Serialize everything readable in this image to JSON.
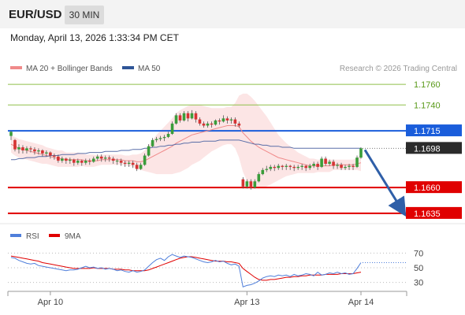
{
  "header": {
    "pair": "EUR/USD",
    "timeframe": "30 MIN"
  },
  "datetime": "Monday, April 13, 2026 1:33:34 PM CET",
  "legend": {
    "bb": {
      "label": "MA 20 + Bollinger Bands",
      "color": "#f08a8a"
    },
    "ma50": {
      "label": "MA 50",
      "color": "#2f5597"
    }
  },
  "credit": "Research © 2026 Trading Central",
  "chart_data": {
    "type": "candlestick",
    "ylim": [
      1.1625,
      1.177
    ],
    "levels": [
      {
        "value": 1.176,
        "label": "1.1760",
        "kind": "target",
        "color": "#8fbf4a"
      },
      {
        "value": 1.174,
        "label": "1.1740",
        "kind": "target",
        "color": "#8fbf4a"
      },
      {
        "value": 1.1715,
        "label": "1.1715",
        "kind": "pivot",
        "color": "#1a5ddb"
      },
      {
        "value": 1.166,
        "label": "1.1660",
        "kind": "support",
        "color": "#e00000"
      },
      {
        "value": 1.1635,
        "label": "1.1635",
        "kind": "support",
        "color": "#e00000"
      }
    ],
    "last_price": {
      "value": 1.1698,
      "label": "1.1698"
    },
    "arrow": {
      "from": 1.1698,
      "to": 1.1635
    },
    "x_labels": [
      "Apr 10",
      "Apr 13",
      "Apr 14"
    ],
    "x_label_index": [
      10,
      60,
      89
    ],
    "n_bars": 90,
    "candles": [
      [
        1.171,
        1.1714,
        1.1706,
        1.1715
      ],
      [
        1.1706,
        1.1697,
        1.1695,
        1.1707
      ],
      [
        1.1697,
        1.1699,
        1.1693,
        1.1702
      ],
      [
        1.1699,
        1.1696,
        1.1693,
        1.1701
      ],
      [
        1.1696,
        1.1698,
        1.1693,
        1.17
      ],
      [
        1.1698,
        1.1697,
        1.1694,
        1.17
      ],
      [
        1.1697,
        1.1695,
        1.1692,
        1.1699
      ],
      [
        1.1695,
        1.1696,
        1.1692,
        1.1698
      ],
      [
        1.1696,
        1.1693,
        1.169,
        1.1697
      ],
      [
        1.1693,
        1.1694,
        1.169,
        1.1696
      ],
      [
        1.1694,
        1.1691,
        1.1688,
        1.1695
      ],
      [
        1.1691,
        1.169,
        1.1687,
        1.1693
      ],
      [
        1.169,
        1.1686,
        1.1684,
        1.1692
      ],
      [
        1.1686,
        1.1688,
        1.1684,
        1.169
      ],
      [
        1.1688,
        1.1686,
        1.1683,
        1.1689
      ],
      [
        1.1686,
        1.1687,
        1.1683,
        1.1689
      ],
      [
        1.1687,
        1.1684,
        1.1681,
        1.1688
      ],
      [
        1.1684,
        1.1686,
        1.1682,
        1.1688
      ],
      [
        1.1686,
        1.1684,
        1.1681,
        1.1687
      ],
      [
        1.1684,
        1.1686,
        1.1682,
        1.1688
      ],
      [
        1.1686,
        1.1685,
        1.1682,
        1.1688
      ],
      [
        1.1685,
        1.1688,
        1.1684,
        1.169
      ],
      [
        1.1688,
        1.169,
        1.1686,
        1.1692
      ],
      [
        1.169,
        1.1688,
        1.1685,
        1.1692
      ],
      [
        1.1688,
        1.1689,
        1.1685,
        1.1691
      ],
      [
        1.1689,
        1.1688,
        1.1685,
        1.1691
      ],
      [
        1.1688,
        1.1686,
        1.1683,
        1.169
      ],
      [
        1.1686,
        1.1686,
        1.1682,
        1.1688
      ],
      [
        1.1686,
        1.1684,
        1.1681,
        1.1688
      ],
      [
        1.1684,
        1.1683,
        1.168,
        1.1686
      ],
      [
        1.1683,
        1.1684,
        1.168,
        1.1686
      ],
      [
        1.1684,
        1.1682,
        1.1679,
        1.1686
      ],
      [
        1.1682,
        1.1678,
        1.1676,
        1.1684
      ],
      [
        1.1678,
        1.1682,
        1.1677,
        1.1684
      ],
      [
        1.1682,
        1.1691,
        1.1681,
        1.1693
      ],
      [
        1.1691,
        1.17,
        1.169,
        1.1702
      ],
      [
        1.17,
        1.1706,
        1.1699,
        1.1708
      ],
      [
        1.1706,
        1.1707,
        1.1704,
        1.1709
      ],
      [
        1.1707,
        1.1708,
        1.1705,
        1.171
      ],
      [
        1.1708,
        1.1709,
        1.1705,
        1.1711
      ],
      [
        1.1709,
        1.1712,
        1.1708,
        1.1714
      ],
      [
        1.1712,
        1.1722,
        1.1711,
        1.1724
      ],
      [
        1.1722,
        1.173,
        1.1721,
        1.1732
      ],
      [
        1.173,
        1.1725,
        1.1723,
        1.1732
      ],
      [
        1.1725,
        1.1732,
        1.1724,
        1.1734
      ],
      [
        1.1732,
        1.1727,
        1.1724,
        1.1734
      ],
      [
        1.1727,
        1.1732,
        1.1726,
        1.1735
      ],
      [
        1.1732,
        1.1726,
        1.1723,
        1.1734
      ],
      [
        1.1726,
        1.1722,
        1.172,
        1.1728
      ],
      [
        1.1722,
        1.172,
        1.1718,
        1.1724
      ],
      [
        1.172,
        1.1722,
        1.1718,
        1.1724
      ],
      [
        1.1722,
        1.1721,
        1.1718,
        1.1724
      ],
      [
        1.1721,
        1.1725,
        1.172,
        1.1726
      ],
      [
        1.1725,
        1.1724,
        1.1721,
        1.1727
      ],
      [
        1.1724,
        1.1727,
        1.1723,
        1.173
      ],
      [
        1.1727,
        1.1725,
        1.1722,
        1.1729
      ],
      [
        1.1725,
        1.1726,
        1.1722,
        1.1728
      ],
      [
        1.1726,
        1.1722,
        1.1719,
        1.1728
      ],
      [
        1.1722,
        1.172,
        1.1718,
        1.1724
      ],
      [
        1.1668,
        1.1661,
        1.1659,
        1.167
      ],
      [
        1.1661,
        1.1666,
        1.1659,
        1.1668
      ],
      [
        1.1666,
        1.166,
        1.1658,
        1.1668
      ],
      [
        1.166,
        1.1666,
        1.1659,
        1.1668
      ],
      [
        1.1666,
        1.1673,
        1.1665,
        1.1675
      ],
      [
        1.1673,
        1.1677,
        1.1672,
        1.1679
      ],
      [
        1.1677,
        1.1678,
        1.1675,
        1.1681
      ],
      [
        1.1678,
        1.168,
        1.1676,
        1.1682
      ],
      [
        1.168,
        1.1679,
        1.1676,
        1.1682
      ],
      [
        1.1679,
        1.1681,
        1.1677,
        1.1683
      ],
      [
        1.1681,
        1.168,
        1.1677,
        1.1682
      ],
      [
        1.168,
        1.1681,
        1.1677,
        1.1683
      ],
      [
        1.1681,
        1.168,
        1.1677,
        1.1682
      ],
      [
        1.168,
        1.1679,
        1.1676,
        1.1682
      ],
      [
        1.1679,
        1.168,
        1.1677,
        1.1682
      ],
      [
        1.168,
        1.1681,
        1.1677,
        1.1683
      ],
      [
        1.1681,
        1.1679,
        1.1676,
        1.1682
      ],
      [
        1.1679,
        1.1681,
        1.1677,
        1.1683
      ],
      [
        1.1681,
        1.1683,
        1.1679,
        1.1685
      ],
      [
        1.1683,
        1.168,
        1.1677,
        1.1685
      ],
      [
        1.168,
        1.1688,
        1.1679,
        1.169
      ],
      [
        1.1688,
        1.1683,
        1.1681,
        1.169
      ],
      [
        1.1683,
        1.1685,
        1.1681,
        1.1687
      ],
      [
        1.1685,
        1.1681,
        1.1678,
        1.1687
      ],
      [
        1.1681,
        1.1682,
        1.1678,
        1.1684
      ],
      [
        1.1682,
        1.1679,
        1.1677,
        1.1684
      ],
      [
        1.1679,
        1.168,
        1.1677,
        1.1682
      ],
      [
        1.168,
        1.1681,
        1.1677,
        1.1683
      ],
      [
        1.1681,
        1.168,
        1.1677,
        1.1683
      ],
      [
        1.168,
        1.1689,
        1.1679,
        1.1691
      ],
      [
        1.1689,
        1.1698,
        1.1688,
        1.1699
      ]
    ],
    "ma20": [
      1.1702,
      1.17,
      1.1698,
      1.1697,
      1.1696,
      1.1695,
      1.1694,
      1.1693,
      1.1692,
      1.1691,
      1.169,
      1.1689,
      1.1688,
      1.1688,
      1.1687,
      1.1687,
      1.1687,
      1.1687,
      1.1687,
      1.1686,
      1.1686,
      1.1686,
      1.1686,
      1.1687,
      1.1687,
      1.1687,
      1.1687,
      1.1687,
      1.1687,
      1.1686,
      1.1686,
      1.1686,
      1.1685,
      1.1685,
      1.1686,
      1.1688,
      1.169,
      1.1692,
      1.1694,
      1.1696,
      1.1698,
      1.17,
      1.1703,
      1.1705,
      1.1707,
      1.1709,
      1.1711,
      1.1712,
      1.1713,
      1.1714,
      1.1715,
      1.1716,
      1.1717,
      1.1718,
      1.1719,
      1.172,
      1.172,
      1.172,
      1.1719,
      1.1713,
      1.1709,
      1.1705,
      1.1702,
      1.1699,
      1.1697,
      1.1695,
      1.1693,
      1.1691,
      1.1689,
      1.1688,
      1.1687,
      1.1686,
      1.1685,
      1.1684,
      1.1683,
      1.1682,
      1.1681,
      1.1681,
      1.1681,
      1.1681,
      1.1681,
      1.1681,
      1.1682,
      1.1682,
      1.1682,
      1.1682,
      1.1682,
      1.1682,
      1.1683,
      1.1684
    ],
    "bb_width": [
      0.0008,
      0.0009,
      0.0009,
      0.0009,
      0.0009,
      0.0009,
      0.0009,
      0.0009,
      0.0009,
      0.0008,
      0.0008,
      0.0008,
      0.0008,
      0.0008,
      0.0007,
      0.0007,
      0.0007,
      0.0007,
      0.0006,
      0.0006,
      0.0006,
      0.0006,
      0.0005,
      0.0005,
      0.0005,
      0.0005,
      0.0005,
      0.0005,
      0.0005,
      0.0005,
      0.0005,
      0.0006,
      0.0007,
      0.0008,
      0.001,
      0.0013,
      0.0016,
      0.0019,
      0.0021,
      0.0023,
      0.0025,
      0.0027,
      0.0029,
      0.003,
      0.003,
      0.003,
      0.0029,
      0.0028,
      0.0027,
      0.0025,
      0.0023,
      0.0021,
      0.002,
      0.0019,
      0.0018,
      0.0018,
      0.0018,
      0.0022,
      0.003,
      0.0038,
      0.0042,
      0.0043,
      0.0042,
      0.004,
      0.0037,
      0.0034,
      0.003,
      0.0026,
      0.0022,
      0.0019,
      0.0016,
      0.0014,
      0.0012,
      0.001,
      0.0009,
      0.0008,
      0.0007,
      0.0007,
      0.0006,
      0.0006,
      0.0006,
      0.0006,
      0.0005,
      0.0005,
      0.0005,
      0.0005,
      0.0005,
      0.0005,
      0.0006,
      0.0008
    ],
    "ma50": [
      1.1687,
      1.1687,
      1.1688,
      1.1688,
      1.1689,
      1.1689,
      1.1689,
      1.169,
      1.169,
      1.169,
      1.1691,
      1.1691,
      1.1691,
      1.1692,
      1.1692,
      1.1692,
      1.1692,
      1.1693,
      1.1693,
      1.1693,
      1.1694,
      1.1694,
      1.1694,
      1.1694,
      1.1695,
      1.1695,
      1.1695,
      1.1695,
      1.1696,
      1.1696,
      1.1696,
      1.1697,
      1.1697,
      1.1697,
      1.1698,
      1.1698,
      1.1699,
      1.1699,
      1.17,
      1.17,
      1.1701,
      1.1701,
      1.1702,
      1.1702,
      1.1703,
      1.1703,
      1.1704,
      1.1704,
      1.1704,
      1.1705,
      1.1705,
      1.1705,
      1.1705,
      1.1706,
      1.1706,
      1.1706,
      1.1706,
      1.1706,
      1.1706,
      1.1705,
      1.1704,
      1.1703,
      1.1702,
      1.1702,
      1.1701,
      1.1701,
      1.17,
      1.17,
      1.17,
      1.1699,
      1.1699,
      1.1699,
      1.1698,
      1.1698,
      1.1698,
      1.1698,
      1.1698,
      1.1698,
      1.1698,
      1.1698,
      1.1698,
      1.1698,
      1.1698,
      1.1698,
      1.1698,
      1.1698,
      1.1698,
      1.1698,
      1.1698,
      1.1698
    ],
    "rsi": {
      "label": "RSI",
      "color": "#4f7fdb",
      "ma_label": "9MA",
      "ma_color": "#e00000",
      "ylim": [
        20,
        80
      ],
      "levels": [
        70,
        50,
        30
      ],
      "level_labels": [
        "70",
        "50",
        "30"
      ],
      "values": [
        64,
        63,
        60,
        58,
        56,
        55,
        56,
        53,
        52,
        51,
        50,
        49,
        48,
        47,
        46,
        47,
        47,
        48,
        50,
        52,
        50,
        51,
        49,
        50,
        48,
        49,
        48,
        46,
        47,
        45,
        44,
        46,
        44,
        45,
        47,
        52,
        57,
        61,
        63,
        60,
        65,
        68,
        66,
        64,
        66,
        65,
        64,
        62,
        60,
        58,
        57,
        58,
        60,
        58,
        59,
        56,
        54,
        55,
        52,
        24,
        26,
        27,
        29,
        32,
        36,
        38,
        39,
        38,
        40,
        39,
        40,
        38,
        41,
        39,
        40,
        42,
        41,
        39,
        44,
        40,
        41,
        43,
        42,
        44,
        42,
        43,
        41,
        42,
        49,
        57
      ],
      "ma": [
        66,
        65,
        64,
        63,
        62,
        61,
        60,
        59,
        57,
        56,
        55,
        54,
        53,
        52,
        51,
        50,
        49,
        49,
        49,
        49,
        49,
        50,
        49,
        49,
        49,
        49,
        48,
        48,
        48,
        47,
        47,
        46,
        46,
        46,
        46,
        47,
        49,
        51,
        53,
        55,
        57,
        59,
        61,
        63,
        64,
        65,
        65,
        64,
        63,
        62,
        61,
        60,
        59,
        59,
        59,
        58,
        58,
        57,
        56,
        49,
        45,
        41,
        37,
        34,
        33,
        33,
        34,
        34,
        35,
        36,
        37,
        37,
        38,
        38,
        39,
        39,
        40,
        40,
        40,
        40,
        41,
        41,
        41,
        41,
        42,
        42,
        42,
        42,
        43,
        44
      ]
    }
  }
}
